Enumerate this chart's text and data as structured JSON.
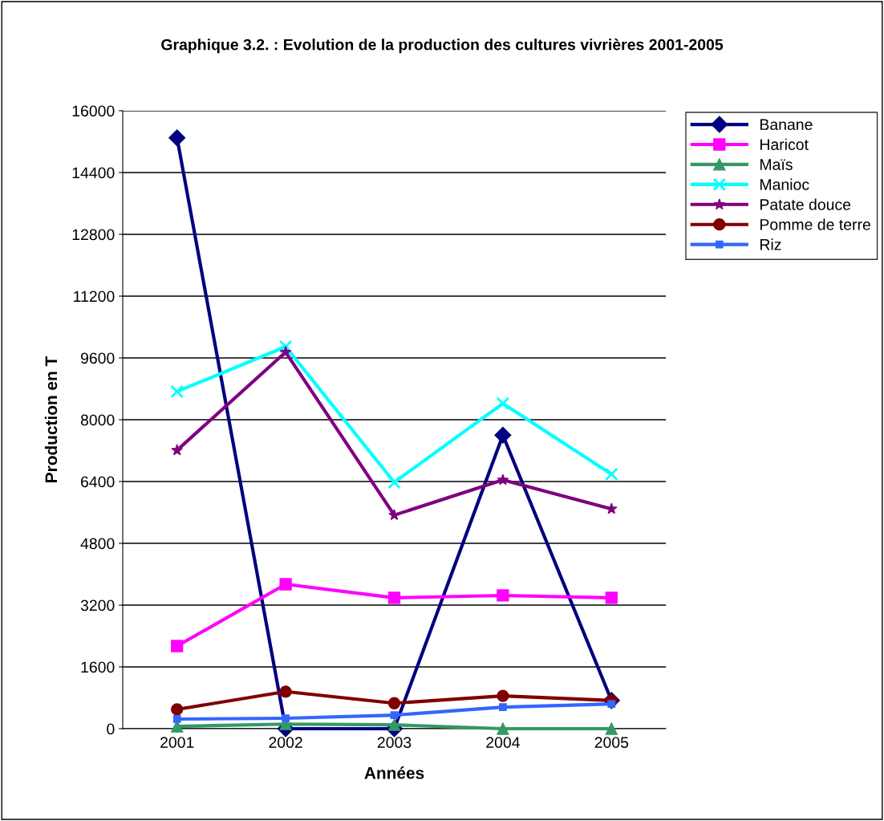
{
  "chart_data": {
    "type": "line",
    "title": "Graphique 3.2. : Evolution de la production des cultures vivrières 2001-2005",
    "xlabel": "Années",
    "ylabel": "Production en T",
    "categories": [
      "2001",
      "2002",
      "2003",
      "2004",
      "2005"
    ],
    "ylim": [
      0,
      16000
    ],
    "yticks": [
      0,
      1600,
      3200,
      4800,
      6400,
      8000,
      9600,
      11200,
      12800,
      14400,
      16000
    ],
    "grid": "y",
    "legend": "right",
    "series": [
      {
        "name": "Banane",
        "color": "#000080",
        "marker": "diamond",
        "values": [
          15300,
          0,
          0,
          7600,
          730
        ]
      },
      {
        "name": "Haricot",
        "color": "#ff00ff",
        "marker": "square",
        "values": [
          2140,
          3740,
          3390,
          3450,
          3390
        ]
      },
      {
        "name": "Maïs",
        "color": "#339966",
        "marker": "triangle",
        "values": [
          60,
          120,
          100,
          0,
          0
        ]
      },
      {
        "name": "Manioc",
        "color": "#00ffff",
        "marker": "cross",
        "values": [
          8730,
          9890,
          6380,
          8420,
          6590
        ]
      },
      {
        "name": "Patate douce",
        "color": "#800080",
        "marker": "star",
        "values": [
          7210,
          9750,
          5530,
          6440,
          5690
        ]
      },
      {
        "name": "Pomme de terre",
        "color": "#800000",
        "marker": "circle",
        "values": [
          500,
          960,
          660,
          850,
          730
        ]
      },
      {
        "name": "Riz",
        "color": "#3366ff",
        "marker": "square",
        "values": [
          250,
          270,
          350,
          560,
          640
        ]
      }
    ]
  }
}
